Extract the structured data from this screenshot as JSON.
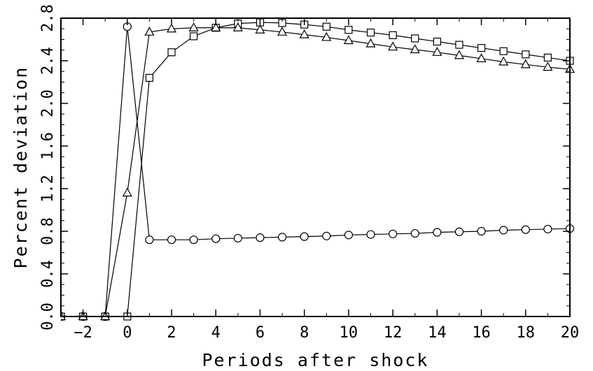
{
  "chart_data": {
    "type": "line",
    "title": "",
    "xlabel": "Periods after shock",
    "ylabel": "Percent deviation",
    "xlim": [
      -3,
      20
    ],
    "ylim": [
      0,
      2.8
    ],
    "grid": false,
    "x_ticks": [
      -2,
      0,
      2,
      4,
      6,
      8,
      10,
      12,
      14,
      16,
      18,
      20
    ],
    "x_tick_labels": [
      "−2",
      "0",
      "2",
      "4",
      "6",
      "8",
      "10",
      "12",
      "14",
      "16",
      "18",
      "20"
    ],
    "y_ticks": [
      0.0,
      0.4,
      0.8,
      1.2,
      1.6,
      2.0,
      2.4,
      2.8
    ],
    "y_tick_labels": [
      "0.0",
      "0.4",
      "0.8",
      "1.2",
      "1.6",
      "2.0",
      "2.4",
      "2.8"
    ],
    "x": [
      -3,
      -2,
      -1,
      0,
      1,
      2,
      3,
      4,
      5,
      6,
      7,
      8,
      9,
      10,
      11,
      12,
      13,
      14,
      15,
      16,
      17,
      18,
      19,
      20
    ],
    "series": [
      {
        "marker": "circle",
        "values": [
          0,
          0,
          0,
          2.72,
          0.72,
          0.72,
          0.72,
          0.73,
          0.735,
          0.74,
          0.745,
          0.75,
          0.755,
          0.765,
          0.77,
          0.775,
          0.78,
          0.79,
          0.795,
          0.8,
          0.81,
          0.815,
          0.82,
          0.825
        ]
      },
      {
        "marker": "square",
        "values": [
          0,
          0,
          0,
          0,
          2.24,
          2.48,
          2.63,
          2.71,
          2.75,
          2.76,
          2.755,
          2.74,
          2.72,
          2.69,
          2.665,
          2.64,
          2.61,
          2.58,
          2.55,
          2.52,
          2.49,
          2.46,
          2.43,
          2.4
        ]
      },
      {
        "marker": "triangle",
        "values": [
          0,
          0,
          0,
          1.16,
          2.67,
          2.7,
          2.71,
          2.71,
          2.71,
          2.69,
          2.67,
          2.645,
          2.62,
          2.59,
          2.56,
          2.53,
          2.505,
          2.48,
          2.45,
          2.42,
          2.39,
          2.365,
          2.34,
          2.32
        ]
      }
    ]
  }
}
